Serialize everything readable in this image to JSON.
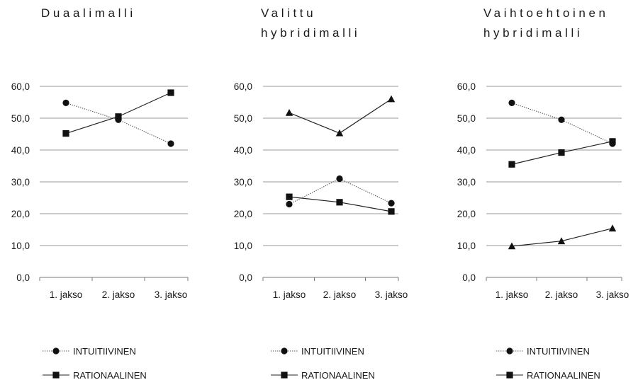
{
  "chart_data": [
    {
      "type": "line",
      "title_lines": [
        "Duaalimalli"
      ],
      "categories": [
        "1. jakso",
        "2. jakso",
        "3. jakso"
      ],
      "ylim": [
        0,
        60
      ],
      "yticks": [
        "0,0",
        "10,0",
        "20,0",
        "30,0",
        "40,0",
        "50,0",
        "60,0"
      ],
      "grid": true,
      "series": [
        {
          "name": "INTUITIIVINEN",
          "marker": "circle",
          "style": "dotted",
          "values": [
            54.8,
            49.5,
            42.0
          ]
        },
        {
          "name": "RATIONAALINEN",
          "marker": "square",
          "style": "solid",
          "values": [
            45.2,
            50.5,
            58.0
          ]
        }
      ]
    },
    {
      "type": "line",
      "title_lines": [
        "Valittu",
        "hybridimalli"
      ],
      "categories": [
        "1. jakso",
        "2. jakso",
        "3. jakso"
      ],
      "ylim": [
        0,
        60
      ],
      "yticks": [
        "0,0",
        "10,0",
        "20,0",
        "30,0",
        "40,0",
        "50,0",
        "60,0"
      ],
      "grid": true,
      "series": [
        {
          "name": "INTUITIIVINEN",
          "marker": "circle",
          "style": "dotted",
          "values": [
            23.0,
            31.0,
            23.3
          ]
        },
        {
          "name": "RATIONAALINEN",
          "marker": "square",
          "style": "solid",
          "values": [
            25.3,
            23.6,
            20.7
          ]
        },
        {
          "name": "",
          "marker": "triangle",
          "style": "solid",
          "values": [
            51.7,
            45.3,
            56.0
          ]
        }
      ]
    },
    {
      "type": "line",
      "title_lines": [
        "Vaihtoehtoinen",
        "hybridimalli"
      ],
      "categories": [
        "1. jakso",
        "2. jakso",
        "3. jakso"
      ],
      "ylim": [
        0,
        60
      ],
      "yticks": [
        "0,0",
        "10,0",
        "20,0",
        "30,0",
        "40,0",
        "50,0",
        "60,0"
      ],
      "grid": true,
      "series": [
        {
          "name": "INTUITIIVINEN",
          "marker": "circle",
          "style": "dotted",
          "values": [
            54.8,
            49.5,
            42.0
          ]
        },
        {
          "name": "RATIONAALINEN",
          "marker": "square",
          "style": "solid",
          "values": [
            35.5,
            39.2,
            42.7
          ]
        },
        {
          "name": "",
          "marker": "triangle",
          "style": "solid",
          "values": [
            9.8,
            11.4,
            15.4
          ]
        }
      ]
    }
  ]
}
